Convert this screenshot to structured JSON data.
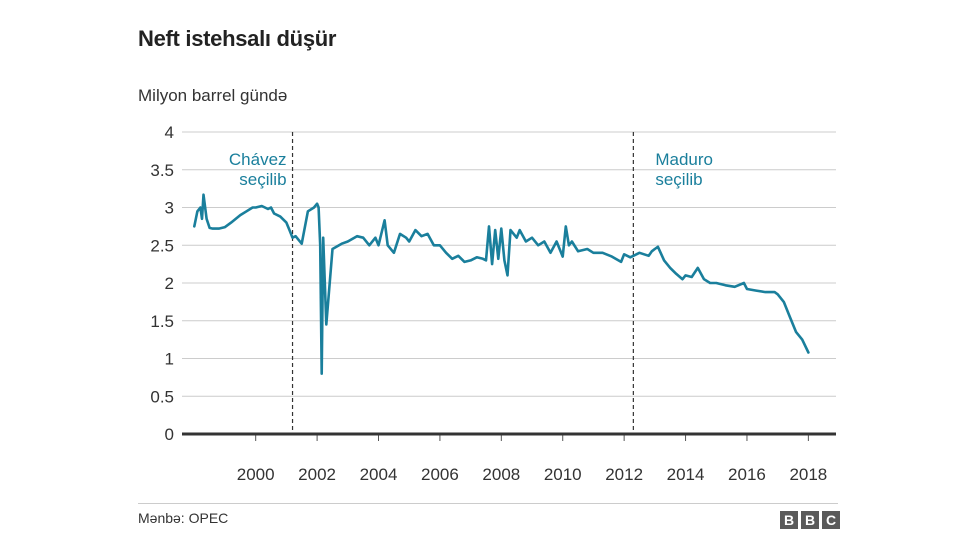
{
  "title": "Neft istehsalı düşür",
  "source": "Mənbə: OPEC",
  "logo": [
    "B",
    "B",
    "C"
  ],
  "chart_data": {
    "type": "line",
    "title": "Neft istehsalı düşür",
    "ylabel": "Milyon barrel gündə",
    "xlabel": "",
    "xlim": [
      1997.6,
      2018.9
    ],
    "ylim": [
      0,
      4
    ],
    "yticks": [
      0,
      0.5,
      1,
      1.5,
      2,
      2.5,
      3,
      3.5,
      4
    ],
    "ytick_labels": [
      "0",
      "0.5",
      "1",
      "1.5",
      "2",
      "2.5",
      "3",
      "3.5",
      "4"
    ],
    "xticks": [
      2000,
      2002,
      2004,
      2006,
      2008,
      2010,
      2012,
      2014,
      2016,
      2018
    ],
    "xtick_labels": [
      "2000",
      "2002",
      "2004",
      "2006",
      "2008",
      "2010",
      "2012",
      "2014",
      "2016",
      "2018"
    ],
    "grid": true,
    "color": "#1a7f9c",
    "annotations": [
      {
        "x": 2001.2,
        "lines": [
          "Chávez",
          "seçilib"
        ],
        "align": "right"
      },
      {
        "x": 2012.3,
        "lines": [
          "Maduro",
          "seçilib"
        ],
        "align": "left"
      }
    ],
    "series": [
      {
        "x": [
          1998.0,
          1998.1,
          1998.2,
          1998.25,
          1998.3,
          1998.4,
          1998.5,
          1998.6,
          1998.8,
          1999.0,
          1999.2,
          1999.5,
          1999.7,
          1999.9,
          2000.0,
          2000.2,
          2000.4,
          2000.5,
          2000.6,
          2000.8,
          2001.0,
          2001.1,
          2001.2,
          2001.3,
          2001.5,
          2001.7,
          2001.9,
          2002.0,
          2002.05,
          2002.1,
          2002.15,
          2002.2,
          2002.3,
          2002.5,
          2002.8,
          2003.0,
          2003.3,
          2003.5,
          2003.7,
          2003.9,
          2004.0,
          2004.2,
          2004.3,
          2004.5,
          2004.7,
          2004.9,
          2005.0,
          2005.2,
          2005.4,
          2005.6,
          2005.8,
          2006.0,
          2006.2,
          2006.4,
          2006.6,
          2006.8,
          2007.0,
          2007.2,
          2007.4,
          2007.5,
          2007.6,
          2007.7,
          2007.8,
          2007.9,
          2008.0,
          2008.1,
          2008.2,
          2008.3,
          2008.5,
          2008.6,
          2008.8,
          2009.0,
          2009.2,
          2009.4,
          2009.6,
          2009.8,
          2010.0,
          2010.1,
          2010.2,
          2010.3,
          2010.5,
          2010.8,
          2011.0,
          2011.3,
          2011.6,
          2011.9,
          2012.0,
          2012.2,
          2012.5,
          2012.8,
          2012.9,
          2013.0,
          2013.1,
          2013.3,
          2013.5,
          2013.7,
          2013.9,
          2014.0,
          2014.2,
          2014.4,
          2014.6,
          2014.8,
          2015.0,
          2015.3,
          2015.6,
          2015.9,
          2016.0,
          2016.3,
          2016.6,
          2016.9,
          2017.0,
          2017.2,
          2017.4,
          2017.6,
          2017.8,
          2018.0
        ],
        "y": [
          2.75,
          2.95,
          3.0,
          2.85,
          3.17,
          2.85,
          2.73,
          2.72,
          2.72,
          2.74,
          2.8,
          2.9,
          2.95,
          3.0,
          3.0,
          3.02,
          2.98,
          3.0,
          2.92,
          2.88,
          2.8,
          2.7,
          2.6,
          2.62,
          2.52,
          2.95,
          3.0,
          3.05,
          3.0,
          2.5,
          0.8,
          2.6,
          1.45,
          2.45,
          2.52,
          2.55,
          2.62,
          2.6,
          2.5,
          2.6,
          2.5,
          2.83,
          2.5,
          2.4,
          2.65,
          2.6,
          2.55,
          2.7,
          2.62,
          2.65,
          2.5,
          2.5,
          2.4,
          2.32,
          2.36,
          2.28,
          2.3,
          2.34,
          2.32,
          2.3,
          2.75,
          2.25,
          2.7,
          2.32,
          2.72,
          2.3,
          2.1,
          2.7,
          2.6,
          2.7,
          2.55,
          2.6,
          2.5,
          2.55,
          2.4,
          2.55,
          2.35,
          2.75,
          2.5,
          2.55,
          2.42,
          2.45,
          2.4,
          2.4,
          2.35,
          2.28,
          2.38,
          2.34,
          2.4,
          2.36,
          2.42,
          2.45,
          2.48,
          2.3,
          2.2,
          2.12,
          2.05,
          2.1,
          2.08,
          2.2,
          2.05,
          2.0,
          2.0,
          1.97,
          1.95,
          2.0,
          1.92,
          1.9,
          1.88,
          1.88,
          1.85,
          1.75,
          1.55,
          1.35,
          1.25,
          1.08
        ]
      }
    ]
  }
}
